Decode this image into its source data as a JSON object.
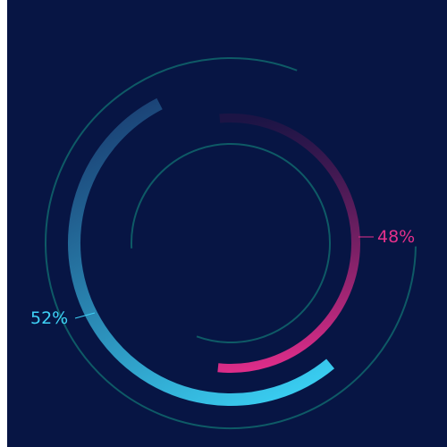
{
  "chart_data": {
    "type": "pie",
    "categories": [
      "",
      ""
    ],
    "values": [
      52,
      48
    ],
    "labels": [
      "52%",
      "48%"
    ],
    "colors": {
      "background": "#071544",
      "series_0_start": "#1a3f73",
      "series_0_end": "#3ad0f3",
      "series_1_start": "#2a1446",
      "series_1_end": "#e62e8c",
      "decor_ring": "#0e5a66",
      "label_0": "#3fd2f7",
      "label_1": "#e4308b"
    },
    "legend": "none"
  }
}
